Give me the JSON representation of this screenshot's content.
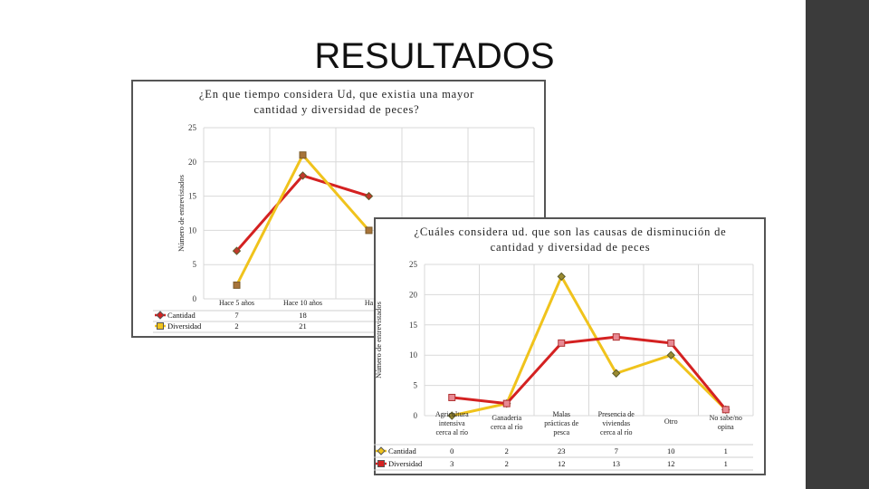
{
  "slide": {
    "title": "RESULTADOS"
  },
  "chart_data": [
    {
      "type": "line",
      "title": "¿En que tiempo considera Ud, que existia una mayor cantidad y diversidad de peces?",
      "ylabel": "Número de entrevistados",
      "ylim": [
        0,
        25
      ],
      "yticks": [
        0,
        5,
        10,
        15,
        20,
        25
      ],
      "grid": true,
      "legend": "data-table",
      "categories": [
        "Hace 5 años",
        "Hace 10 años",
        "Ha"
      ],
      "series": [
        {
          "name": "Cantidad",
          "color": "#d42121",
          "marker": "diamond",
          "values": [
            7,
            18,
            15
          ],
          "table": [
            "7",
            "18",
            ""
          ]
        },
        {
          "name": "Diversidad",
          "color": "#f0c31c",
          "marker": "square",
          "values": [
            2,
            21,
            10
          ],
          "table": [
            "2",
            "21",
            ""
          ]
        }
      ]
    },
    {
      "type": "line",
      "title": "¿Cuáles considera ud. que son las causas de disminución de cantidad y diversidad de peces",
      "ylabel": "Número de entrevistados",
      "ylim": [
        0,
        25
      ],
      "yticks": [
        0,
        5,
        10,
        15,
        20,
        25
      ],
      "grid": true,
      "legend": "data-table",
      "categories": [
        "Agricultura intensiva cerca al río",
        "Ganaderia cerca al río",
        "Malas prácticas de pesca",
        "Presencia de viviendas cerca al río",
        "Otro",
        "No sabe/no opina"
      ],
      "series": [
        {
          "name": "Cantidad",
          "color": "#f0c31c",
          "marker": "diamond",
          "values": [
            0,
            2,
            23,
            7,
            10,
            1
          ]
        },
        {
          "name": "Diversidad",
          "color": "#d42121",
          "marker": "square",
          "values": [
            3,
            2,
            12,
            13,
            12,
            1
          ]
        }
      ]
    }
  ]
}
